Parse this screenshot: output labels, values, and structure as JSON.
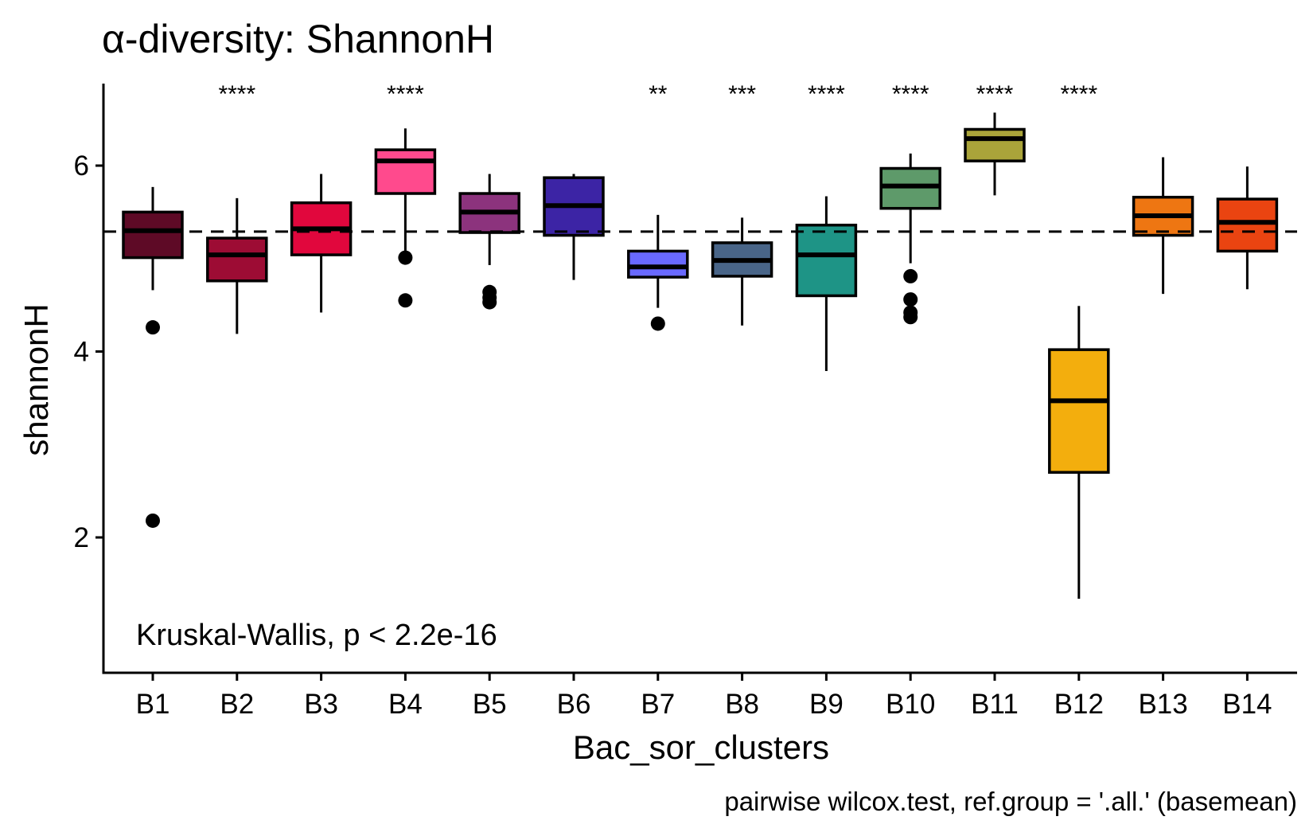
{
  "chart_data": {
    "type": "boxplot",
    "title": "α-diversity: ShannonH",
    "xlabel": "Bac_sor_clusters",
    "ylabel": "shannonH",
    "ylim": [
      0.55,
      6.85
    ],
    "yticks": [
      2,
      4,
      6
    ],
    "reference_line": {
      "y": 5.29,
      "style": "dashed"
    },
    "annotation": "Kruskal-Wallis, p < 2.2e-16",
    "caption": "pairwise wilcox.test, ref.group = '.all.' (basemean)",
    "grid": false,
    "legend": "none",
    "categories": [
      "B1",
      "B2",
      "B3",
      "B4",
      "B5",
      "B6",
      "B7",
      "B8",
      "B9",
      "B10",
      "B11",
      "B12",
      "B13",
      "B14"
    ],
    "boxes": [
      {
        "name": "B1",
        "color": "#5E0A26",
        "min": 4.66,
        "q1": 5.01,
        "median": 5.3,
        "q3": 5.5,
        "max": 5.77,
        "outliers": [
          4.26,
          2.18
        ],
        "significance": ""
      },
      {
        "name": "B2",
        "color": "#9D0C34",
        "min": 4.19,
        "q1": 4.76,
        "median": 5.04,
        "q3": 5.22,
        "max": 5.65,
        "outliers": [],
        "significance": "****"
      },
      {
        "name": "B3",
        "color": "#E1073D",
        "min": 4.42,
        "q1": 5.04,
        "median": 5.32,
        "q3": 5.6,
        "max": 5.91,
        "outliers": [],
        "significance": ""
      },
      {
        "name": "B4",
        "color": "#FF4A8D",
        "min": 5.07,
        "q1": 5.7,
        "median": 6.05,
        "q3": 6.17,
        "max": 6.4,
        "outliers": [
          5.01,
          4.55
        ],
        "significance": "****"
      },
      {
        "name": "B5",
        "color": "#8C337D",
        "min": 4.93,
        "q1": 5.28,
        "median": 5.5,
        "q3": 5.7,
        "max": 5.91,
        "outliers": [
          4.64,
          4.58,
          4.53
        ],
        "significance": ""
      },
      {
        "name": "B6",
        "color": "#3C24A5",
        "min": 4.77,
        "q1": 5.25,
        "median": 5.57,
        "q3": 5.87,
        "max": 5.91,
        "outliers": [],
        "significance": ""
      },
      {
        "name": "B7",
        "color": "#6969FF",
        "min": 4.47,
        "q1": 4.8,
        "median": 4.91,
        "q3": 5.08,
        "max": 5.47,
        "outliers": [
          4.3
        ],
        "significance": "**"
      },
      {
        "name": "B8",
        "color": "#496588",
        "min": 4.28,
        "q1": 4.81,
        "median": 4.98,
        "q3": 5.17,
        "max": 5.44,
        "outliers": [],
        "significance": "***"
      },
      {
        "name": "B9",
        "color": "#1E9486",
        "min": 3.79,
        "q1": 4.6,
        "median": 5.04,
        "q3": 5.36,
        "max": 5.67,
        "outliers": [],
        "significance": "****"
      },
      {
        "name": "B10",
        "color": "#5E9A6A",
        "min": 4.95,
        "q1": 5.54,
        "median": 5.78,
        "q3": 5.97,
        "max": 6.13,
        "outliers": [
          4.81,
          4.56,
          4.42,
          4.37
        ],
        "significance": "****"
      },
      {
        "name": "B11",
        "color": "#AAA43A",
        "min": 5.68,
        "q1": 6.05,
        "median": 6.29,
        "q3": 6.39,
        "max": 6.57,
        "outliers": [],
        "significance": "****"
      },
      {
        "name": "B12",
        "color": "#F3AE0D",
        "min": 1.34,
        "q1": 2.7,
        "median": 3.47,
        "q3": 4.02,
        "max": 4.49,
        "outliers": [],
        "significance": "****"
      },
      {
        "name": "B13",
        "color": "#EE7612",
        "min": 4.62,
        "q1": 5.25,
        "median": 5.46,
        "q3": 5.66,
        "max": 6.09,
        "outliers": [],
        "significance": ""
      },
      {
        "name": "B14",
        "color": "#EA4411",
        "min": 4.67,
        "q1": 5.08,
        "median": 5.39,
        "q3": 5.64,
        "max": 5.99,
        "outliers": [],
        "significance": ""
      }
    ]
  }
}
